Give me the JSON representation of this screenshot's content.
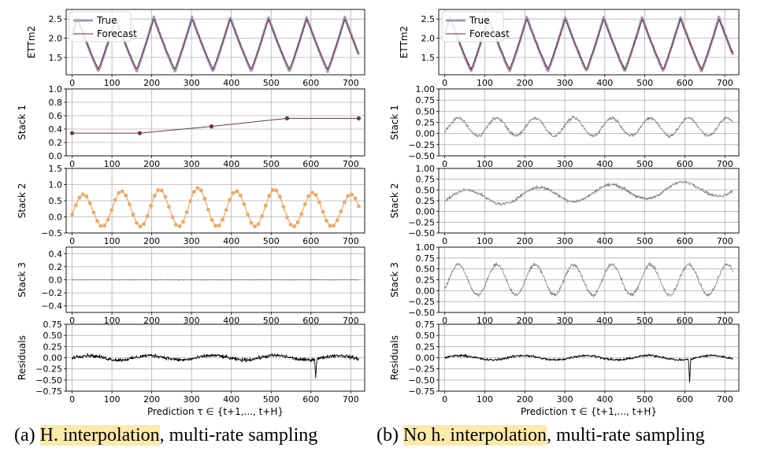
{
  "colors": {
    "true_line": "#9b9db8",
    "forecast_line": "#7a1f2e",
    "stack1": "#6b3a3a",
    "stack2": "#f0a860",
    "stack_noise": "#808080",
    "residual": "#000000",
    "grid": "#b0b0b0",
    "highlight": "#fde9a8"
  },
  "legend": {
    "true_label": "True",
    "forecast_label": "Forecast"
  },
  "xlabel": "Prediction τ ∈ {t+1,..., t+H}",
  "captions": [
    {
      "prefix": "(a) ",
      "highlight": "H. interpolation",
      "suffix": ", multi-rate sampling"
    },
    {
      "prefix": "(b) ",
      "highlight": "No h. interpolation",
      "suffix": ", multi-rate sampling"
    }
  ],
  "chart_data": [
    {
      "type": "line",
      "panel": "a",
      "row": 1,
      "ylabel": "ETTm2",
      "xlim": [
        -15,
        735
      ],
      "ylim": [
        1.05,
        2.75
      ],
      "xticks": [
        0,
        100,
        200,
        300,
        400,
        500,
        600,
        700
      ],
      "yticks": [
        1.5,
        2.0,
        2.5
      ],
      "ytick_labels": [
        "1.5",
        "2.0",
        "2.5"
      ],
      "grid": true,
      "legend": "top-left",
      "series": [
        {
          "name": "True",
          "kind": "wave",
          "amp_mean": 2.55,
          "trough": 1.15,
          "period": 96,
          "noise": 0.03
        },
        {
          "name": "Forecast",
          "kind": "wave",
          "amp_mean": 2.5,
          "trough": 1.2,
          "period": 96,
          "noise": 0.02
        }
      ]
    },
    {
      "type": "line",
      "panel": "a",
      "row": 2,
      "ylabel": "Stack 1",
      "xlim": [
        -15,
        735
      ],
      "ylim": [
        0.0,
        1.0
      ],
      "xticks": [
        0,
        100,
        200,
        300,
        400,
        500,
        600,
        700
      ],
      "yticks": [
        0.0,
        0.2,
        0.4,
        0.6,
        0.8,
        1.0
      ],
      "ytick_labels": [
        "0.0",
        "0.2",
        "0.4",
        "0.6",
        "0.8",
        "1.0"
      ],
      "grid": true,
      "series": [
        {
          "kind": "points",
          "x": [
            0,
            170,
            350,
            540,
            720
          ],
          "y": [
            0.34,
            0.34,
            0.44,
            0.56,
            0.56
          ]
        }
      ]
    },
    {
      "type": "line",
      "panel": "a",
      "row": 3,
      "ylabel": "Stack 2",
      "xlim": [
        -15,
        735
      ],
      "ylim": [
        -0.5,
        1.5
      ],
      "xticks": [
        0,
        100,
        200,
        300,
        400,
        500,
        600,
        700
      ],
      "yticks": [
        -0.5,
        0.0,
        0.5,
        1.0,
        1.5
      ],
      "ytick_labels": [
        "−0.5",
        "0.0",
        "0.5",
        "1.0",
        "1.5"
      ],
      "grid": true,
      "series": [
        {
          "kind": "sampled-wave",
          "step": 9,
          "peaks": [
            0.7,
            0.8,
            0.85,
            0.9,
            0.8,
            0.85,
            0.75,
            0.7
          ],
          "trough": -0.3,
          "period": 96
        }
      ]
    },
    {
      "type": "line",
      "panel": "a",
      "row": 4,
      "ylabel": "Stack 3",
      "xlim": [
        -15,
        735
      ],
      "ylim": [
        -0.5,
        0.5
      ],
      "xticks": [
        0,
        100,
        200,
        300,
        400,
        500,
        600,
        700
      ],
      "yticks": [
        -0.4,
        -0.2,
        0.0,
        0.2,
        0.4
      ],
      "ytick_labels": [
        "−0.4",
        "−0.2",
        "0.0",
        "0.2",
        "0.4"
      ],
      "grid": true,
      "series": [
        {
          "kind": "noise",
          "center": 0.0,
          "noise": 0.01
        }
      ]
    },
    {
      "type": "line",
      "panel": "a",
      "row": 5,
      "ylabel": "Residuals",
      "xlim": [
        -15,
        735
      ],
      "ylim": [
        -0.75,
        0.75
      ],
      "xticks": [
        0,
        100,
        200,
        300,
        400,
        500,
        600,
        700
      ],
      "yticks": [
        -0.75,
        -0.5,
        -0.25,
        0.0,
        0.25,
        0.5,
        0.75
      ],
      "ytick_labels": [
        "−0.75",
        "−0.50",
        "−0.25",
        "0.00",
        "0.25",
        "0.50",
        "0.75"
      ],
      "grid": true,
      "series": [
        {
          "kind": "residual",
          "noise": 0.06,
          "spike_x": 612,
          "spike_y": -0.45
        }
      ]
    },
    {
      "type": "line",
      "panel": "b",
      "row": 1,
      "ylabel": "ETTm2",
      "xlim": [
        -15,
        735
      ],
      "ylim": [
        1.05,
        2.75
      ],
      "xticks": [
        0,
        100,
        200,
        300,
        400,
        500,
        600,
        700
      ],
      "yticks": [
        1.5,
        2.0,
        2.5
      ],
      "ytick_labels": [
        "1.5",
        "2.0",
        "2.5"
      ],
      "grid": true,
      "legend": "top-left",
      "series": [
        {
          "name": "True",
          "kind": "wave",
          "amp_mean": 2.55,
          "trough": 1.15,
          "period": 96,
          "noise": 0.03
        },
        {
          "name": "Forecast",
          "kind": "wave",
          "amp_mean": 2.5,
          "trough": 1.2,
          "period": 96,
          "noise": 0.04
        }
      ]
    },
    {
      "type": "line",
      "panel": "b",
      "row": 2,
      "ylabel": "Stack 1",
      "xlim": [
        -15,
        735
      ],
      "ylim": [
        -0.5,
        1.0
      ],
      "xticks": [
        0,
        100,
        200,
        300,
        400,
        500,
        600,
        700
      ],
      "yticks": [
        -0.5,
        -0.25,
        0.0,
        0.25,
        0.5,
        0.75,
        1.0
      ],
      "ytick_labels": [
        "−0.50",
        "−0.25",
        "0.00",
        "0.25",
        "0.50",
        "0.75",
        "1.00"
      ],
      "grid": true,
      "series": [
        {
          "kind": "noisy-wave",
          "base": 0.15,
          "amp": 0.2,
          "period": 96,
          "noise": 0.06
        }
      ]
    },
    {
      "type": "line",
      "panel": "b",
      "row": 3,
      "ylabel": "Stack 2",
      "xlim": [
        -15,
        735
      ],
      "ylim": [
        -0.5,
        1.0
      ],
      "xticks": [
        0,
        100,
        200,
        300,
        400,
        500,
        600,
        700
      ],
      "yticks": [
        -0.5,
        -0.25,
        0.0,
        0.25,
        0.5,
        0.75,
        1.0
      ],
      "ytick_labels": [
        "−0.50",
        "−0.25",
        "0.00",
        "0.25",
        "0.50",
        "0.75",
        "1.00"
      ],
      "grid": true,
      "series": [
        {
          "kind": "noisy-wave",
          "base": 0.3,
          "amp": 0.18,
          "period": 180,
          "noise": 0.06,
          "trend": 0.25
        }
      ]
    },
    {
      "type": "line",
      "panel": "b",
      "row": 4,
      "ylabel": "Stack 3",
      "xlim": [
        -15,
        735
      ],
      "ylim": [
        -0.5,
        1.0
      ],
      "xticks": [
        0,
        100,
        200,
        300,
        400,
        500,
        600,
        700
      ],
      "yticks": [
        -0.5,
        -0.25,
        0.0,
        0.25,
        0.5,
        0.75,
        1.0
      ],
      "ytick_labels": [
        "−0.50",
        "−0.25",
        "0.00",
        "0.25",
        "0.50",
        "0.75",
        "1.00"
      ],
      "grid": true,
      "series": [
        {
          "kind": "noisy-wave",
          "base": 0.25,
          "amp": 0.35,
          "period": 96,
          "noise": 0.07
        }
      ]
    },
    {
      "type": "line",
      "panel": "b",
      "row": 5,
      "ylabel": "Residuals",
      "xlim": [
        -15,
        735
      ],
      "ylim": [
        -0.75,
        0.75
      ],
      "xticks": [
        0,
        100,
        200,
        300,
        400,
        500,
        600,
        700
      ],
      "yticks": [
        -0.75,
        -0.5,
        -0.25,
        0.0,
        0.25,
        0.5,
        0.75
      ],
      "ytick_labels": [
        "−0.75",
        "−0.50",
        "−0.25",
        "0.00",
        "0.25",
        "0.50",
        "0.75"
      ],
      "grid": true,
      "series": [
        {
          "kind": "residual",
          "noise": 0.04,
          "spike_x": 612,
          "spike_y": -0.55
        }
      ]
    }
  ]
}
